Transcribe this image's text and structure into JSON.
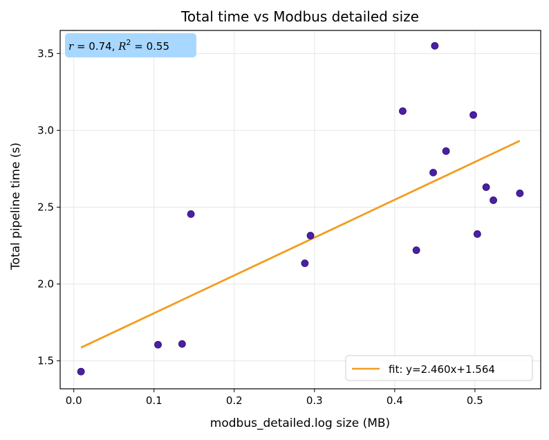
{
  "chart_data": {
    "type": "scatter",
    "title": "Total time vs Modbus detailed size",
    "xlabel": "modbus_detailed.log size (MB)",
    "ylabel": "Total pipeline time (s)",
    "xlim": [
      -0.017,
      0.582
    ],
    "ylim": [
      1.318,
      3.65
    ],
    "xticks": [
      0.0,
      0.1,
      0.2,
      0.3,
      0.4,
      0.5
    ],
    "xtick_labels": [
      "0.0",
      "0.1",
      "0.2",
      "0.3",
      "0.4",
      "0.5"
    ],
    "yticks": [
      1.5,
      2.0,
      2.5,
      3.0,
      3.5
    ],
    "ytick_labels": [
      "1.5",
      "2.0",
      "2.5",
      "3.0",
      "3.5"
    ],
    "grid": true,
    "points": [
      {
        "x": 0.009,
        "y": 1.43
      },
      {
        "x": 0.105,
        "y": 1.605
      },
      {
        "x": 0.135,
        "y": 1.61
      },
      {
        "x": 0.146,
        "y": 2.455
      },
      {
        "x": 0.288,
        "y": 2.135
      },
      {
        "x": 0.295,
        "y": 2.315
      },
      {
        "x": 0.41,
        "y": 3.125
      },
      {
        "x": 0.427,
        "y": 2.22
      },
      {
        "x": 0.448,
        "y": 2.725
      },
      {
        "x": 0.45,
        "y": 3.55
      },
      {
        "x": 0.464,
        "y": 2.865
      },
      {
        "x": 0.498,
        "y": 3.1
      },
      {
        "x": 0.503,
        "y": 2.325
      },
      {
        "x": 0.514,
        "y": 2.63
      },
      {
        "x": 0.523,
        "y": 2.545
      },
      {
        "x": 0.556,
        "y": 2.59
      }
    ],
    "fit": {
      "slope": 2.46,
      "intercept": 1.564,
      "x_range": [
        0.009,
        0.556
      ],
      "label": "fit: y=2.460x+1.564"
    },
    "stats": {
      "r_label": "r",
      "r_text": " = 0.74, ",
      "r2_label": "R",
      "r2_sup": "2",
      "r2_text": " = 0.55"
    },
    "legend_position": "lower-right",
    "colors": {
      "points": "#4b1fa6",
      "point_edge": "#2a0f6b",
      "fit_line": "#f39c1f",
      "stats_box": "#a8d8ff",
      "grid": "#e6e6e6"
    }
  }
}
